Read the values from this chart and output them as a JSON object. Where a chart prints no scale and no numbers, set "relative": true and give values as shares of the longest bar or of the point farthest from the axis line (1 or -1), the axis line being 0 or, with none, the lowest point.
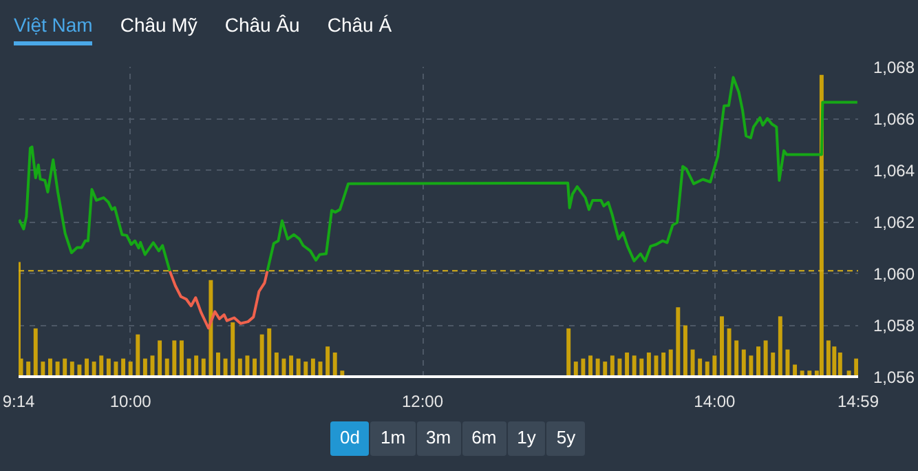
{
  "chart_data": [
    {
      "type": "line",
      "annotations": [
        "Việt Nam",
        "Châu Mỹ",
        "Châu Âu",
        "Châu Á",
        "0d",
        "1m",
        "3m",
        "6m",
        "1y",
        "5y"
      ],
      "xlim": [
        9.2333,
        14.9833
      ],
      "ylim": [
        1056,
        1068
      ],
      "xticks": [
        {
          "value": 9.2333,
          "label": "9:14"
        },
        {
          "value": 10,
          "label": "10:00"
        },
        {
          "value": 12,
          "label": "12:00"
        },
        {
          "value": 14,
          "label": "14:00"
        },
        {
          "value": 14.9833,
          "label": "14:59"
        }
      ],
      "yticks": [
        {
          "value": 1056,
          "label": "1,056"
        },
        {
          "value": 1058,
          "label": "1,058"
        },
        {
          "value": 1060,
          "label": "1,060"
        },
        {
          "value": 1062,
          "label": "1,062"
        },
        {
          "value": 1064,
          "label": "1,064"
        },
        {
          "value": 1066,
          "label": "1,066"
        },
        {
          "value": 1068,
          "label": "1,068"
        }
      ],
      "grid": true,
      "ref_lines": [
        {
          "axis": "y",
          "value": 1060.1,
          "color": "#d9b11c",
          "line_style": "dashed"
        }
      ],
      "series": [
        {
          "color": "#16a816",
          "x": [
            9.237,
            9.268,
            9.287,
            9.313,
            9.325,
            9.35,
            9.369,
            9.382,
            9.414,
            9.433,
            9.47,
            9.502,
            9.552,
            9.596,
            9.634,
            9.665,
            9.69,
            9.709,
            9.735,
            9.766,
            9.816,
            9.848,
            9.873,
            9.892,
            9.942,
            9.974,
            10.005,
            10.03,
            10.056,
            10.068,
            10.099,
            10.156,
            10.194,
            10.219,
            10.269,
            10.6,
            10.937,
            10.981,
            11.012,
            11.038,
            11.076,
            11.119,
            11.157,
            11.182,
            11.232,
            11.27,
            11.296,
            11.34,
            11.378,
            11.402,
            11.434,
            11.491,
            12.995,
            13.007,
            13.027,
            13.059,
            13.115,
            13.14,
            13.165,
            13.222,
            13.241,
            13.272,
            13.298,
            13.342,
            13.373,
            13.404,
            13.449,
            13.493,
            13.524,
            13.562,
            13.6,
            13.644,
            13.675,
            13.713,
            13.744,
            13.782,
            13.807,
            13.857,
            13.92,
            13.971,
            14.022,
            14.065,
            14.097,
            14.128,
            14.166,
            14.192,
            14.216,
            14.248,
            14.267,
            14.311,
            14.33,
            14.362,
            14.393,
            14.424,
            14.443,
            14.475,
            14.494,
            14.733,
            14.74,
            14.978
          ],
          "values": [
            1062.08,
            1061.72,
            1062.2,
            1064.85,
            1064.9,
            1063.7,
            1064.2,
            1063.65,
            1063.6,
            1063.15,
            1064.4,
            1063.15,
            1061.55,
            1060.8,
            1061.0,
            1061.0,
            1061.26,
            1061.26,
            1063.25,
            1062.83,
            1062.93,
            1062.76,
            1062.47,
            1062.55,
            1061.5,
            1061.47,
            1061.12,
            1061.26,
            1060.98,
            1061.2,
            1060.73,
            1061.19,
            1060.87,
            1061.08,
            1060.09,
            null,
            1060.09,
            1061.16,
            1061.26,
            1062.04,
            1061.33,
            1061.5,
            1061.33,
            1061.08,
            1060.87,
            1060.51,
            1060.73,
            1060.76,
            1062.44,
            1062.37,
            1062.47,
            1063.47,
            1063.5,
            1062.54,
            1063.07,
            1063.36,
            1062.93,
            1062.47,
            1062.83,
            1062.83,
            1062.61,
            1062.75,
            1062.29,
            1061.33,
            1061.58,
            1061.05,
            1060.48,
            1060.76,
            1060.48,
            1061.05,
            1061.12,
            1061.26,
            1061.19,
            1061.87,
            1061.97,
            1064.14,
            1064.04,
            1063.47,
            1063.64,
            1063.54,
            1064.53,
            1066.49,
            1066.5,
            1067.59,
            1067.02,
            1066.31,
            1065.32,
            1065.25,
            1065.67,
            1066.03,
            1065.74,
            1066.0,
            1065.78,
            1065.67,
            1063.6,
            1064.75,
            1064.6,
            1064.6,
            1066.63,
            1066.63
          ]
        },
        {
          "color": "#f0624d",
          "x": [
            10.269,
            10.307,
            10.345,
            10.382,
            10.415,
            10.446,
            10.483,
            10.534,
            10.578,
            10.609,
            10.641,
            10.66,
            10.71,
            10.754,
            10.805,
            10.842,
            10.88,
            10.918,
            10.937
          ],
          "values": [
            1060.09,
            1059.52,
            1059.1,
            1059.0,
            1058.74,
            1059.06,
            1058.49,
            1057.88,
            1058.52,
            1058.24,
            1058.4,
            1058.17,
            1058.28,
            1058.06,
            1058.13,
            1058.31,
            1059.3,
            1059.63,
            1060.09
          ]
        }
      ]
    },
    {
      "type": "bar",
      "relative": true,
      "color": "#c9a10c",
      "xlim": [
        9.2333,
        14.9833
      ],
      "tick_labels": false,
      "x": [
        9.2333,
        9.25,
        9.3,
        9.35,
        9.4,
        9.45,
        9.5,
        9.55,
        9.6,
        9.65,
        9.7,
        9.75,
        9.8,
        9.85,
        9.9,
        9.95,
        10.0,
        10.05,
        10.1,
        10.15,
        10.2,
        10.25,
        10.3,
        10.35,
        10.4,
        10.45,
        10.5,
        10.55,
        10.6,
        10.65,
        10.7,
        10.75,
        10.8,
        10.85,
        10.9,
        10.95,
        11.0,
        11.05,
        11.1,
        11.15,
        11.2,
        11.25,
        11.3,
        11.35,
        11.4,
        11.45,
        13.0,
        13.05,
        13.1,
        13.15,
        13.2,
        13.25,
        13.3,
        13.35,
        13.4,
        13.45,
        13.5,
        13.55,
        13.6,
        13.65,
        13.7,
        13.75,
        13.8,
        13.85,
        13.9,
        13.95,
        14.0,
        14.05,
        14.1,
        14.15,
        14.2,
        14.25,
        14.3,
        14.35,
        14.4,
        14.45,
        14.5,
        14.55,
        14.6,
        14.65,
        14.7,
        14.733,
        14.78,
        14.82,
        14.86,
        14.92,
        14.97
      ],
      "values": [
        0.38,
        0.06,
        0.05,
        0.16,
        0.05,
        0.06,
        0.05,
        0.06,
        0.05,
        0.04,
        0.06,
        0.05,
        0.07,
        0.06,
        0.05,
        0.06,
        0.05,
        0.14,
        0.06,
        0.07,
        0.12,
        0.06,
        0.12,
        0.12,
        0.06,
        0.07,
        0.06,
        0.32,
        0.08,
        0.06,
        0.18,
        0.06,
        0.07,
        0.06,
        0.14,
        0.16,
        0.08,
        0.06,
        0.07,
        0.06,
        0.05,
        0.06,
        0.05,
        0.1,
        0.08,
        0.02,
        0.16,
        0.05,
        0.06,
        0.07,
        0.06,
        0.05,
        0.07,
        0.06,
        0.08,
        0.07,
        0.06,
        0.08,
        0.07,
        0.08,
        0.09,
        0.23,
        0.17,
        0.09,
        0.06,
        0.05,
        0.07,
        0.2,
        0.16,
        0.12,
        0.09,
        0.07,
        0.1,
        0.12,
        0.08,
        0.2,
        0.09,
        0.04,
        0.02,
        0.02,
        0.02,
        1.0,
        0.12,
        0.1,
        0.08,
        0.02,
        0.06
      ]
    }
  ]
}
